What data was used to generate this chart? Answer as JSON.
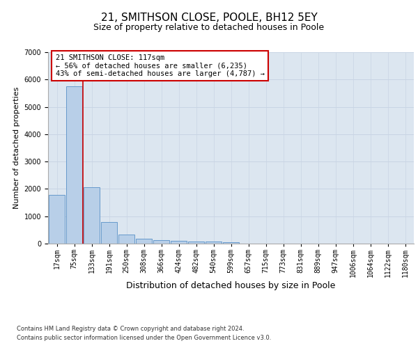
{
  "title": "21, SMITHSON CLOSE, POOLE, BH12 5EY",
  "subtitle": "Size of property relative to detached houses in Poole",
  "xlabel": "Distribution of detached houses by size in Poole",
  "ylabel": "Number of detached properties",
  "footer1": "Contains HM Land Registry data © Crown copyright and database right 2024.",
  "footer2": "Contains public sector information licensed under the Open Government Licence v3.0.",
  "bin_labels": [
    "17sqm",
    "75sqm",
    "133sqm",
    "191sqm",
    "250sqm",
    "308sqm",
    "366sqm",
    "424sqm",
    "482sqm",
    "540sqm",
    "599sqm",
    "657sqm",
    "715sqm",
    "773sqm",
    "831sqm",
    "889sqm",
    "947sqm",
    "1006sqm",
    "1064sqm",
    "1122sqm",
    "1180sqm"
  ],
  "bar_values": [
    1790,
    5750,
    2050,
    800,
    340,
    190,
    115,
    100,
    85,
    80,
    60,
    0,
    0,
    0,
    0,
    0,
    0,
    0,
    0,
    0,
    0
  ],
  "bar_color": "#b8cfe8",
  "bar_edge_color": "#6699cc",
  "grid_color": "#c8d4e4",
  "background_color": "#dce6f0",
  "vline_x_index": 1.5,
  "vline_color": "#cc0000",
  "annotation_text": "21 SMITHSON CLOSE: 117sqm\n← 56% of detached houses are smaller (6,235)\n43% of semi-detached houses are larger (4,787) →",
  "annotation_box_color": "#cc0000",
  "ylim": [
    0,
    7000
  ],
  "yticks": [
    0,
    1000,
    2000,
    3000,
    4000,
    5000,
    6000,
    7000
  ],
  "title_fontsize": 11,
  "subtitle_fontsize": 9,
  "xlabel_fontsize": 9,
  "ylabel_fontsize": 8,
  "tick_fontsize": 7,
  "annotation_fontsize": 7.5,
  "footer_fontsize": 6
}
